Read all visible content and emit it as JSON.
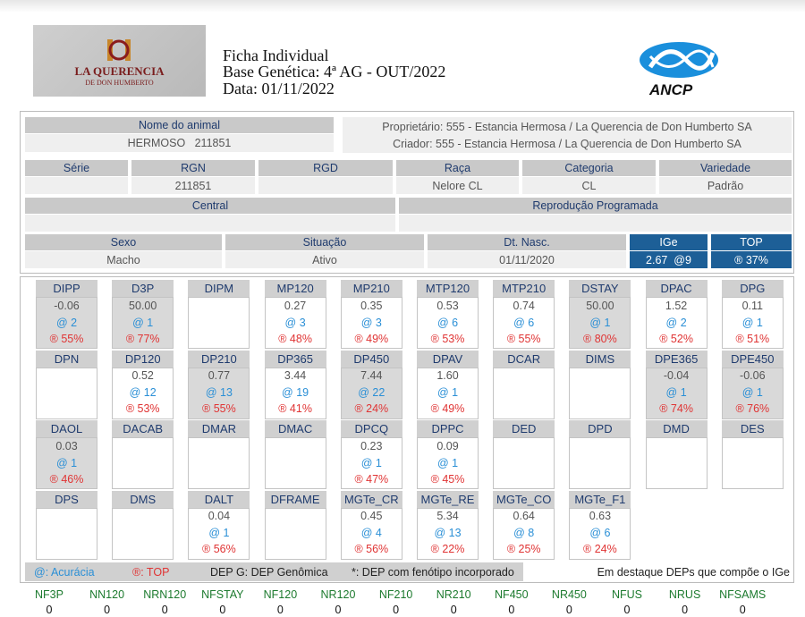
{
  "header": {
    "logo_lines": [
      "LA QUERENCIA",
      "DE DON HUMBERTO"
    ],
    "title": "Ficha Individual",
    "base": "Base Genética: 4ª AG - OUT/2022",
    "date": "Data: 01/11/2022",
    "ancp": "ANCP"
  },
  "animal": {
    "name_label": "Nome do animal",
    "name": "HERMOSO   211851",
    "owner": "Proprietário: 555 - Estancia Hermosa / La Querencia de Don Humberto SA",
    "breeder": "Criador: 555 - Estancia Hermosa / La Querencia de Don Humberto SA"
  },
  "fields": [
    {
      "label": "Série"
    },
    {
      "label": "RGN",
      "value": "211851"
    },
    {
      "label": "RGD"
    },
    {
      "label": "Raça",
      "value": "Nelore CL"
    },
    {
      "label": "Categoria",
      "value": "CL"
    },
    {
      "label": "Variedade",
      "value": "Padrão"
    }
  ],
  "fields2": [
    {
      "label": "Central"
    },
    {
      "label": "Reprodução Programada"
    }
  ],
  "fields3": [
    {
      "label": "Sexo",
      "value": "Macho"
    },
    {
      "label": "Situação",
      "value": "Ativo"
    },
    {
      "label": "Dt. Nasc.",
      "value": "01/11/2020"
    },
    {
      "label": "IGe",
      "value": "2.67  @9"
    },
    {
      "label": "TOP",
      "value": "® 37%"
    }
  ],
  "deps": [
    [
      {
        "name": "DIPP",
        "value": "-0.06",
        "acc": "@ 2",
        "top": "® 55%",
        "highlight": true
      },
      {
        "name": "D3P",
        "value": "50.00",
        "acc": "@ 1",
        "top": "® 77%",
        "highlight": true
      },
      {
        "name": "DIPM"
      },
      {
        "name": "MP120",
        "value": "0.27",
        "acc": "@ 3",
        "top": "® 48%"
      },
      {
        "name": "MP210",
        "value": "0.35",
        "acc": "@ 3",
        "top": "® 49%"
      },
      {
        "name": "MTP120",
        "value": "0.53",
        "acc": "@ 6",
        "top": "® 53%"
      },
      {
        "name": "MTP210",
        "value": "0.74",
        "acc": "@ 6",
        "top": "® 55%"
      },
      {
        "name": "DSTAY",
        "value": "50.00",
        "acc": "@ 1",
        "top": "® 80%",
        "highlight": true
      },
      {
        "name": "DPAC",
        "value": "1.52",
        "acc": "@ 2",
        "top": "® 52%"
      },
      {
        "name": "DPG",
        "value": "0.11",
        "acc": "@ 1",
        "top": "® 51%"
      }
    ],
    [
      {
        "name": "DPN"
      },
      {
        "name": "DP120",
        "value": "0.52",
        "acc": "@ 12",
        "top": "® 53%"
      },
      {
        "name": "DP210",
        "value": "0.77",
        "acc": "@ 13",
        "top": "® 55%",
        "highlight": true
      },
      {
        "name": "DP365",
        "value": "3.44",
        "acc": "@ 19",
        "top": "® 41%"
      },
      {
        "name": "DP450",
        "value": "7.44",
        "acc": "@ 22",
        "top": "® 24%",
        "highlight": true
      },
      {
        "name": "DPAV",
        "value": "1.60",
        "acc": "@ 1",
        "top": "® 49%"
      },
      {
        "name": "DCAR"
      },
      {
        "name": "DIMS"
      },
      {
        "name": "DPE365",
        "value": "-0.04",
        "acc": "@ 1",
        "top": "® 74%",
        "highlight": true
      },
      {
        "name": "DPE450",
        "value": "-0.06",
        "acc": "@ 1",
        "top": "® 76%",
        "highlight": true
      }
    ],
    [
      {
        "name": "DAOL",
        "value": "0.03",
        "acc": "@ 1",
        "top": "® 46%",
        "highlight": true
      },
      {
        "name": "DACAB"
      },
      {
        "name": "DMAR"
      },
      {
        "name": "DMAC"
      },
      {
        "name": "DPCQ",
        "value": "0.23",
        "acc": "@ 1",
        "top": "® 47%"
      },
      {
        "name": "DPPC",
        "value": "0.09",
        "acc": "@ 1",
        "top": "® 45%"
      },
      {
        "name": "DED"
      },
      {
        "name": "DPD"
      },
      {
        "name": "DMD"
      },
      {
        "name": "DES"
      }
    ],
    [
      {
        "name": "DPS"
      },
      {
        "name": "DMS"
      },
      {
        "name": "DALT",
        "value": "0.04",
        "acc": "@ 1",
        "top": "® 56%"
      },
      {
        "name": "DFRAME"
      },
      {
        "name": "MGTe_CR",
        "value": "0.45",
        "acc": "@ 4",
        "top": "® 56%"
      },
      {
        "name": "MGTe_RE",
        "value": "5.34",
        "acc": "@ 13",
        "top": "® 22%"
      },
      {
        "name": "MGTe_CO",
        "value": "0.64",
        "acc": "@ 8",
        "top": "® 25%"
      },
      {
        "name": "MGTe_F1",
        "value": "0.63",
        "acc": "@ 6",
        "top": "® 24%"
      }
    ]
  ],
  "legend": {
    "acc": "@: Acurácia",
    "top": "®: TOP",
    "depg": "DEP G: DEP Genômica",
    "pheno": "*: DEP com fenótipo incorporado",
    "note": "Em destaque DEPs que compõe o IGe"
  },
  "counts": [
    {
      "name": "NF3P",
      "value": "0"
    },
    {
      "name": "NN120",
      "value": "0"
    },
    {
      "name": "NRN120",
      "value": "0"
    },
    {
      "name": "NFSTAY",
      "value": "0"
    },
    {
      "name": "NF120",
      "value": "0"
    },
    {
      "name": "NR120",
      "value": "0"
    },
    {
      "name": "NF210",
      "value": "0"
    },
    {
      "name": "NR210",
      "value": "0"
    },
    {
      "name": "NF450",
      "value": "0"
    },
    {
      "name": "NR450",
      "value": "0"
    },
    {
      "name": "NFUS",
      "value": "0"
    },
    {
      "name": "NRUS",
      "value": "0"
    },
    {
      "name": "NFSAMS",
      "value": "0"
    }
  ]
}
